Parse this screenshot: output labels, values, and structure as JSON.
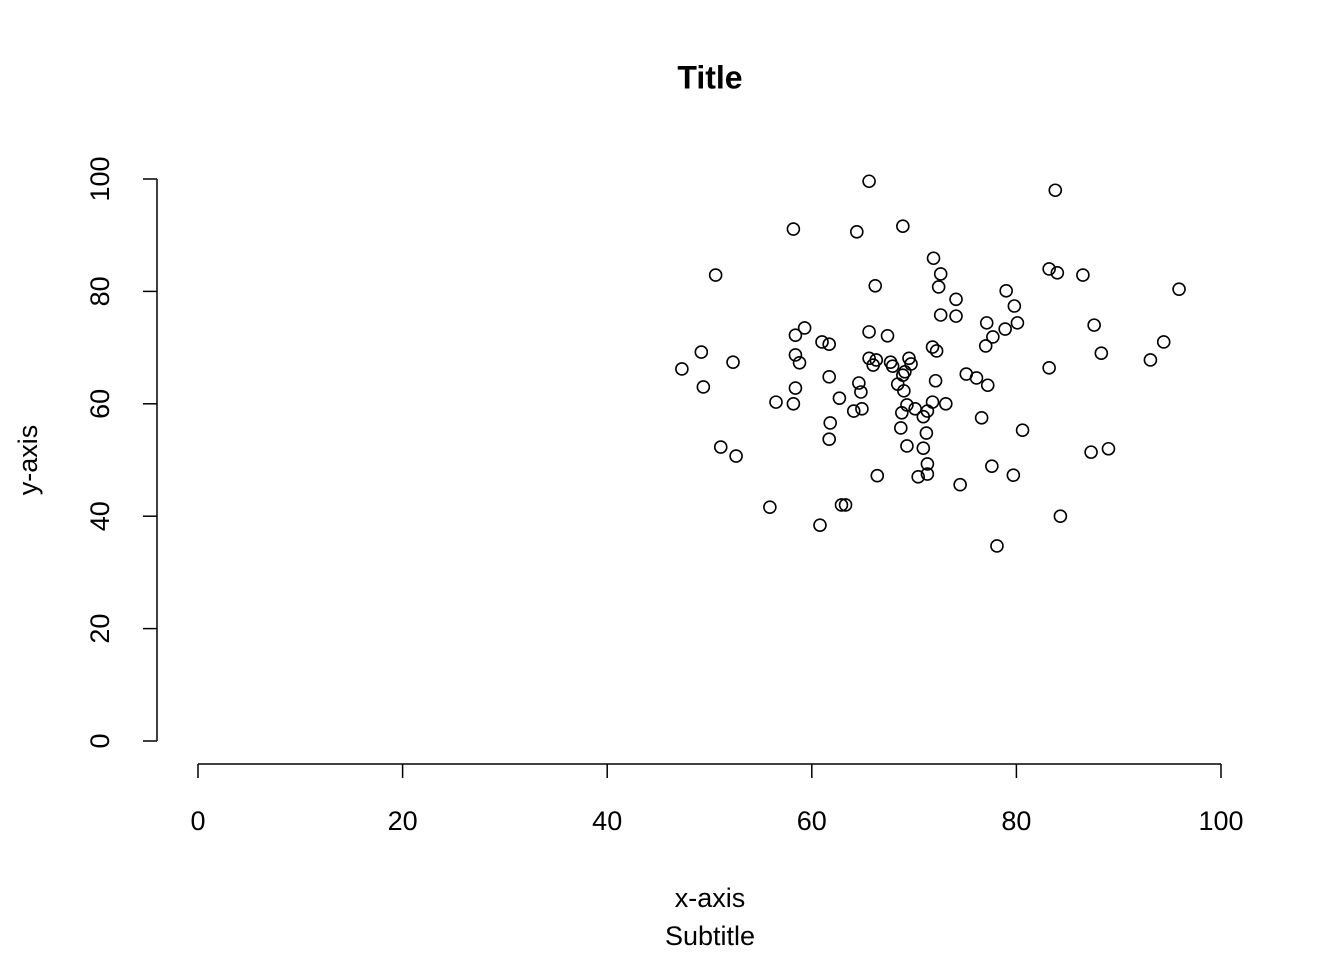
{
  "chart_data": {
    "type": "scatter",
    "title": "Title",
    "subtitle": "Subtitle",
    "x_label": "x-axis",
    "y_label": "y-axis",
    "x": [
      65.6,
      83.8,
      58.2,
      64.4,
      68.9,
      71.9,
      50.6,
      72.6,
      83.2,
      84.0,
      86.5,
      66.2,
      72.4,
      79.0,
      95.9,
      74.1,
      79.8,
      72.6,
      74.1,
      77.1,
      80.1,
      87.6,
      59.3,
      78.9,
      58.4,
      65.6,
      67.4,
      77.7,
      61.0,
      61.7,
      94.4,
      71.8,
      72.2,
      77.0,
      49.2,
      58.4,
      88.3,
      65.6,
      66.3,
      69.5,
      93.1,
      52.3,
      58.8,
      67.7,
      66.0,
      67.9,
      69.7,
      47.3,
      83.2,
      69.1,
      68.9,
      75.1,
      61.7,
      76.1,
      72.1,
      64.6,
      68.4,
      77.2,
      49.4,
      58.4,
      64.8,
      69.0,
      62.7,
      56.5,
      58.2,
      71.8,
      73.1,
      69.3,
      64.9,
      64.1,
      70.1,
      68.8,
      71.3,
      70.9,
      76.6,
      61.8,
      68.7,
      80.6,
      71.2,
      61.7,
      69.3,
      51.1,
      70.9,
      89.0,
      87.3,
      52.6,
      71.3,
      77.6,
      71.3,
      66.4,
      70.4,
      79.7,
      74.5,
      55.9,
      62.9,
      63.3,
      84.3,
      60.8,
      78.1
    ],
    "values": [
      99.6,
      98.0,
      91.1,
      90.6,
      91.6,
      85.9,
      82.9,
      83.1,
      84.0,
      83.3,
      82.9,
      81.0,
      80.8,
      80.1,
      80.4,
      78.6,
      77.4,
      75.8,
      75.6,
      74.4,
      74.4,
      74.0,
      73.5,
      73.3,
      72.2,
      72.8,
      72.1,
      71.9,
      71.0,
      70.6,
      71.0,
      70.1,
      69.4,
      70.3,
      69.2,
      68.7,
      69.0,
      68.1,
      67.8,
      68.1,
      67.8,
      67.4,
      67.3,
      67.4,
      66.9,
      66.7,
      67.1,
      66.2,
      66.4,
      65.7,
      65.1,
      65.3,
      64.8,
      64.6,
      64.1,
      63.7,
      63.5,
      63.3,
      63.0,
      62.8,
      62.1,
      62.3,
      61.0,
      60.3,
      60.0,
      60.3,
      60.0,
      59.8,
      59.1,
      58.7,
      59.1,
      58.4,
      58.7,
      57.7,
      57.5,
      56.6,
      55.7,
      55.3,
      54.8,
      53.7,
      52.5,
      52.3,
      52.1,
      52.0,
      51.4,
      50.7,
      49.3,
      48.9,
      47.5,
      47.2,
      47.0,
      47.3,
      45.6,
      41.6,
      42.0,
      42.0,
      40.0,
      38.4,
      34.7
    ],
    "color": "#000000",
    "xlim": [
      0,
      100
    ],
    "xticks": [
      0,
      20,
      40,
      60,
      80,
      100
    ],
    "ylim": [
      0,
      100
    ],
    "yticks": [
      0,
      20,
      40,
      60,
      80,
      100
    ]
  }
}
